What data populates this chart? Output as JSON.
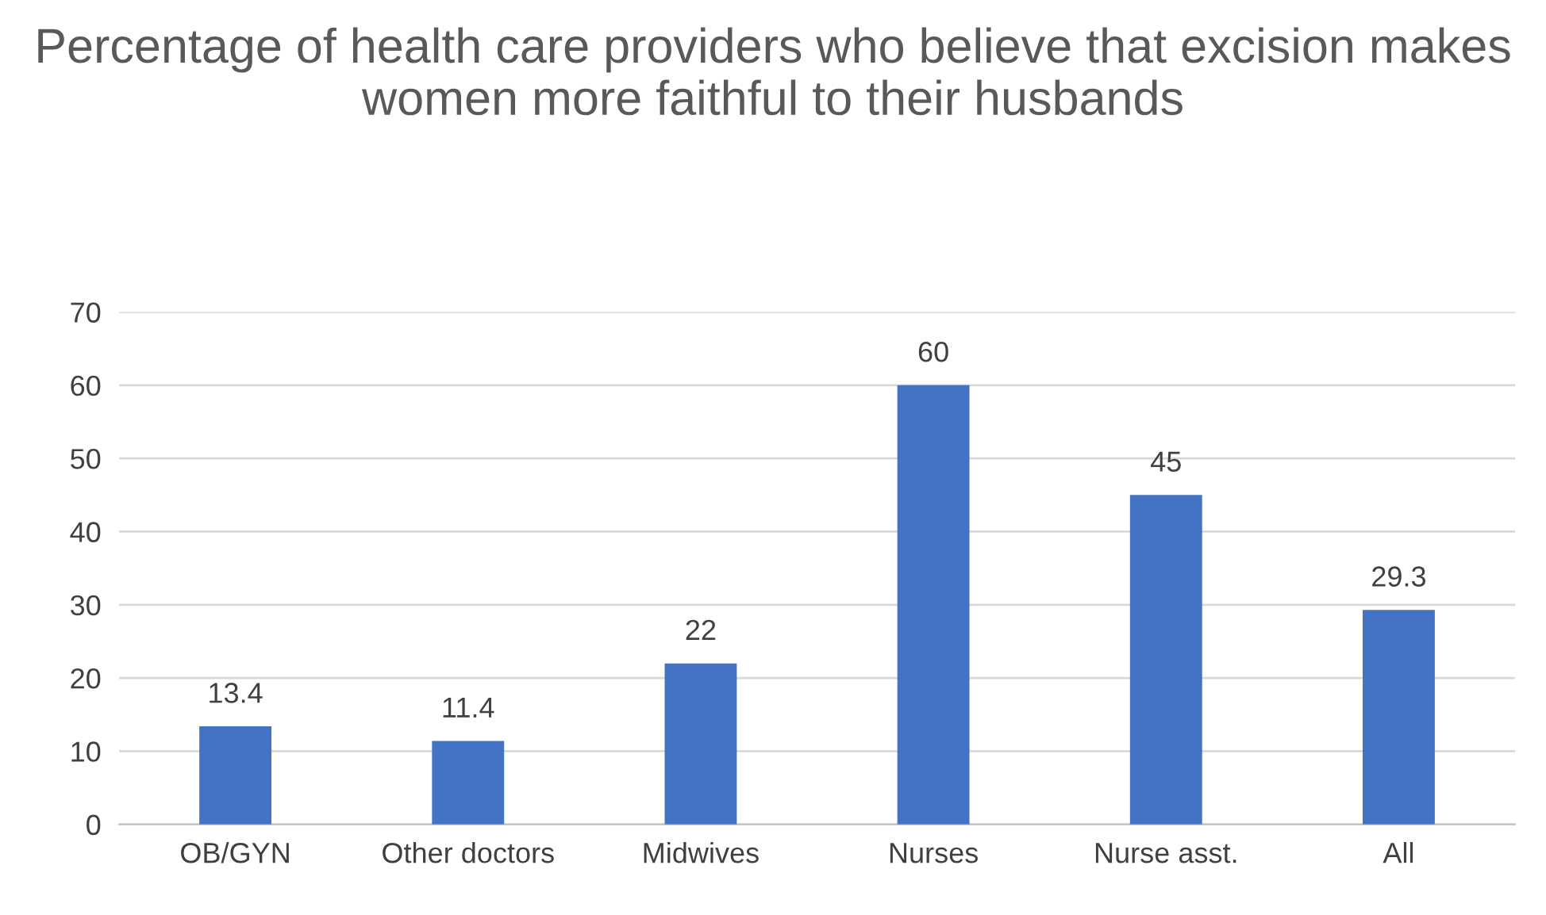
{
  "chart_data": {
    "type": "bar",
    "title": "Percentage of health care providers who believe that excision makes women more faithful to their husbands",
    "categories": [
      "OB/GYN",
      "Other doctors",
      "Midwives",
      "Nurses",
      "Nurse asst.",
      "All"
    ],
    "values": [
      13.4,
      11.4,
      22,
      60,
      45,
      29.3
    ],
    "color": "#4472c4",
    "ylim": [
      0,
      70
    ],
    "yticks": [
      0,
      10,
      20,
      30,
      40,
      50,
      60,
      70
    ],
    "grid": "y",
    "data_labels": true
  }
}
